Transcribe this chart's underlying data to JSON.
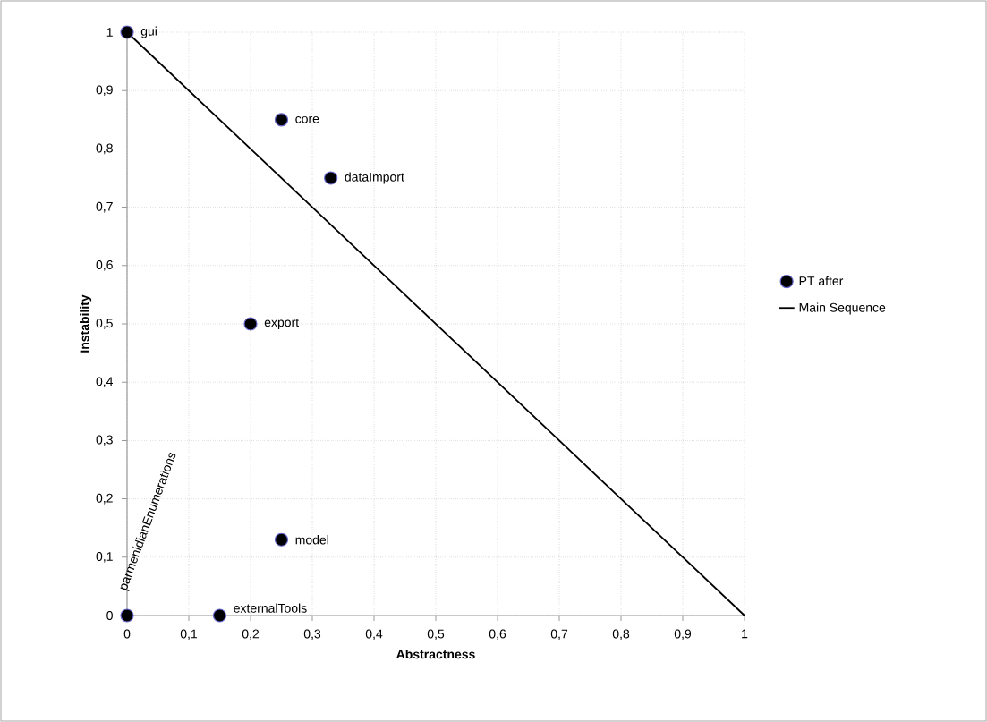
{
  "chart_data": {
    "type": "scatter",
    "xlabel": "Abstractness",
    "ylabel": "Instability",
    "series": [
      {
        "name": "PT after",
        "marker": "circle",
        "color": "#000000",
        "x": [
          0,
          0.25,
          0.33,
          0.2,
          0.25,
          0.15,
          0
        ],
        "values": [
          1,
          0.85,
          0.75,
          0.5,
          0.13,
          0,
          0
        ]
      },
      {
        "name": "Main Sequence",
        "type": "line",
        "marker": "none",
        "color": "#000000",
        "x": [
          0,
          1
        ],
        "values": [
          1,
          0
        ]
      }
    ],
    "annotations": [
      {
        "text": "gui",
        "x": 0,
        "y": 1
      },
      {
        "text": "core",
        "x": 0.25,
        "y": 0.85
      },
      {
        "text": "dataImport",
        "x": 0.33,
        "y": 0.75
      },
      {
        "text": "export",
        "x": 0.2,
        "y": 0.5
      },
      {
        "text": "model",
        "x": 0.25,
        "y": 0.13
      },
      {
        "text": "externalTools",
        "x": 0.15,
        "y": 0
      },
      {
        "text": "parmenidianEnumerations",
        "x": 0,
        "y": 0
      }
    ],
    "xlim": [
      0,
      1
    ],
    "ylim": [
      0,
      1
    ],
    "xticks": [
      0,
      {
        "value": 0.1,
        "label": "0,1"
      },
      {
        "value": 0.2,
        "label": "0,2"
      },
      {
        "value": 0.3,
        "label": "0,3"
      },
      {
        "value": 0.4,
        "label": "0,4"
      },
      {
        "value": 0.5,
        "label": "0,5"
      },
      {
        "value": 0.6,
        "label": "0,6"
      },
      {
        "value": 0.7,
        "label": "0,7"
      },
      {
        "value": 0.8,
        "label": "0,8"
      },
      {
        "value": 0.9,
        "label": "0,9"
      },
      1
    ],
    "yticks": [
      0,
      {
        "value": 0.1,
        "label": "0,1"
      },
      {
        "value": 0.2,
        "label": "0,2"
      },
      {
        "value": 0.3,
        "label": "0,3"
      },
      {
        "value": 0.4,
        "label": "0,4"
      },
      {
        "value": 0.5,
        "label": "0,5"
      },
      {
        "value": 0.6,
        "label": "0,6"
      },
      {
        "value": 0.7,
        "label": "0,7"
      },
      {
        "value": 0.8,
        "label": "0,8"
      },
      {
        "value": 0.9,
        "label": "0,9"
      },
      1
    ],
    "grid": true,
    "legend": "right",
    "line_style": "solid"
  }
}
